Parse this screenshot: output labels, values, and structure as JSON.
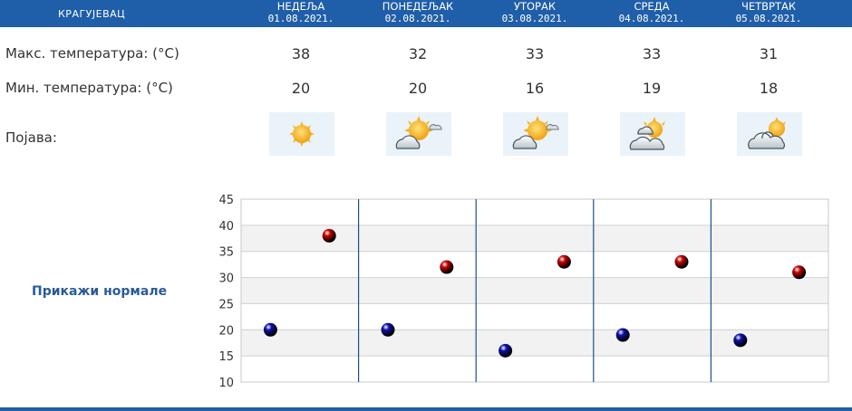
{
  "header": {
    "city": "КРАГУЈЕВАЦ",
    "days": [
      {
        "name": "НЕДЕЉА",
        "date": "01.08.2021."
      },
      {
        "name": "ПОНЕДЕЉАК",
        "date": "02.08.2021."
      },
      {
        "name": "УТОРАК",
        "date": "03.08.2021."
      },
      {
        "name": "СРЕДА",
        "date": "04.08.2021."
      },
      {
        "name": "ЧЕТВРТАК",
        "date": "05.08.2021."
      }
    ]
  },
  "rows": {
    "max_label": "Макс. температура: (°C)",
    "min_label": "Мин. температура: (°C)",
    "phenomenon_label": "Појава:"
  },
  "max_temps": [
    "38",
    "32",
    "33",
    "33",
    "31"
  ],
  "min_temps": [
    "20",
    "20",
    "16",
    "19",
    "18"
  ],
  "weather_icons": [
    "sun-icon",
    "sun-cloud-icon",
    "sun-cloud-icon",
    "cloud-sun-icon",
    "clouds-sun-icon"
  ],
  "normals_link": "Прикажи нормале",
  "colors": {
    "header": "#1f5ea8",
    "max_marker": "#cc0000",
    "min_marker": "#1010b0",
    "link": "#2a5a98"
  },
  "chart_data": {
    "type": "scatter",
    "x": [
      "01.08.2021.",
      "02.08.2021.",
      "03.08.2021.",
      "04.08.2021.",
      "05.08.2021."
    ],
    "series": [
      {
        "values": [
          20,
          20,
          16,
          19,
          18
        ],
        "color": "#1010b0"
      },
      {
        "values": [
          38,
          32,
          33,
          33,
          31
        ],
        "color": "#cc0000"
      }
    ],
    "ylim": [
      10,
      45
    ],
    "yticks": [
      "10",
      "15",
      "20",
      "25",
      "30",
      "35",
      "40",
      "45"
    ],
    "grid": true
  }
}
